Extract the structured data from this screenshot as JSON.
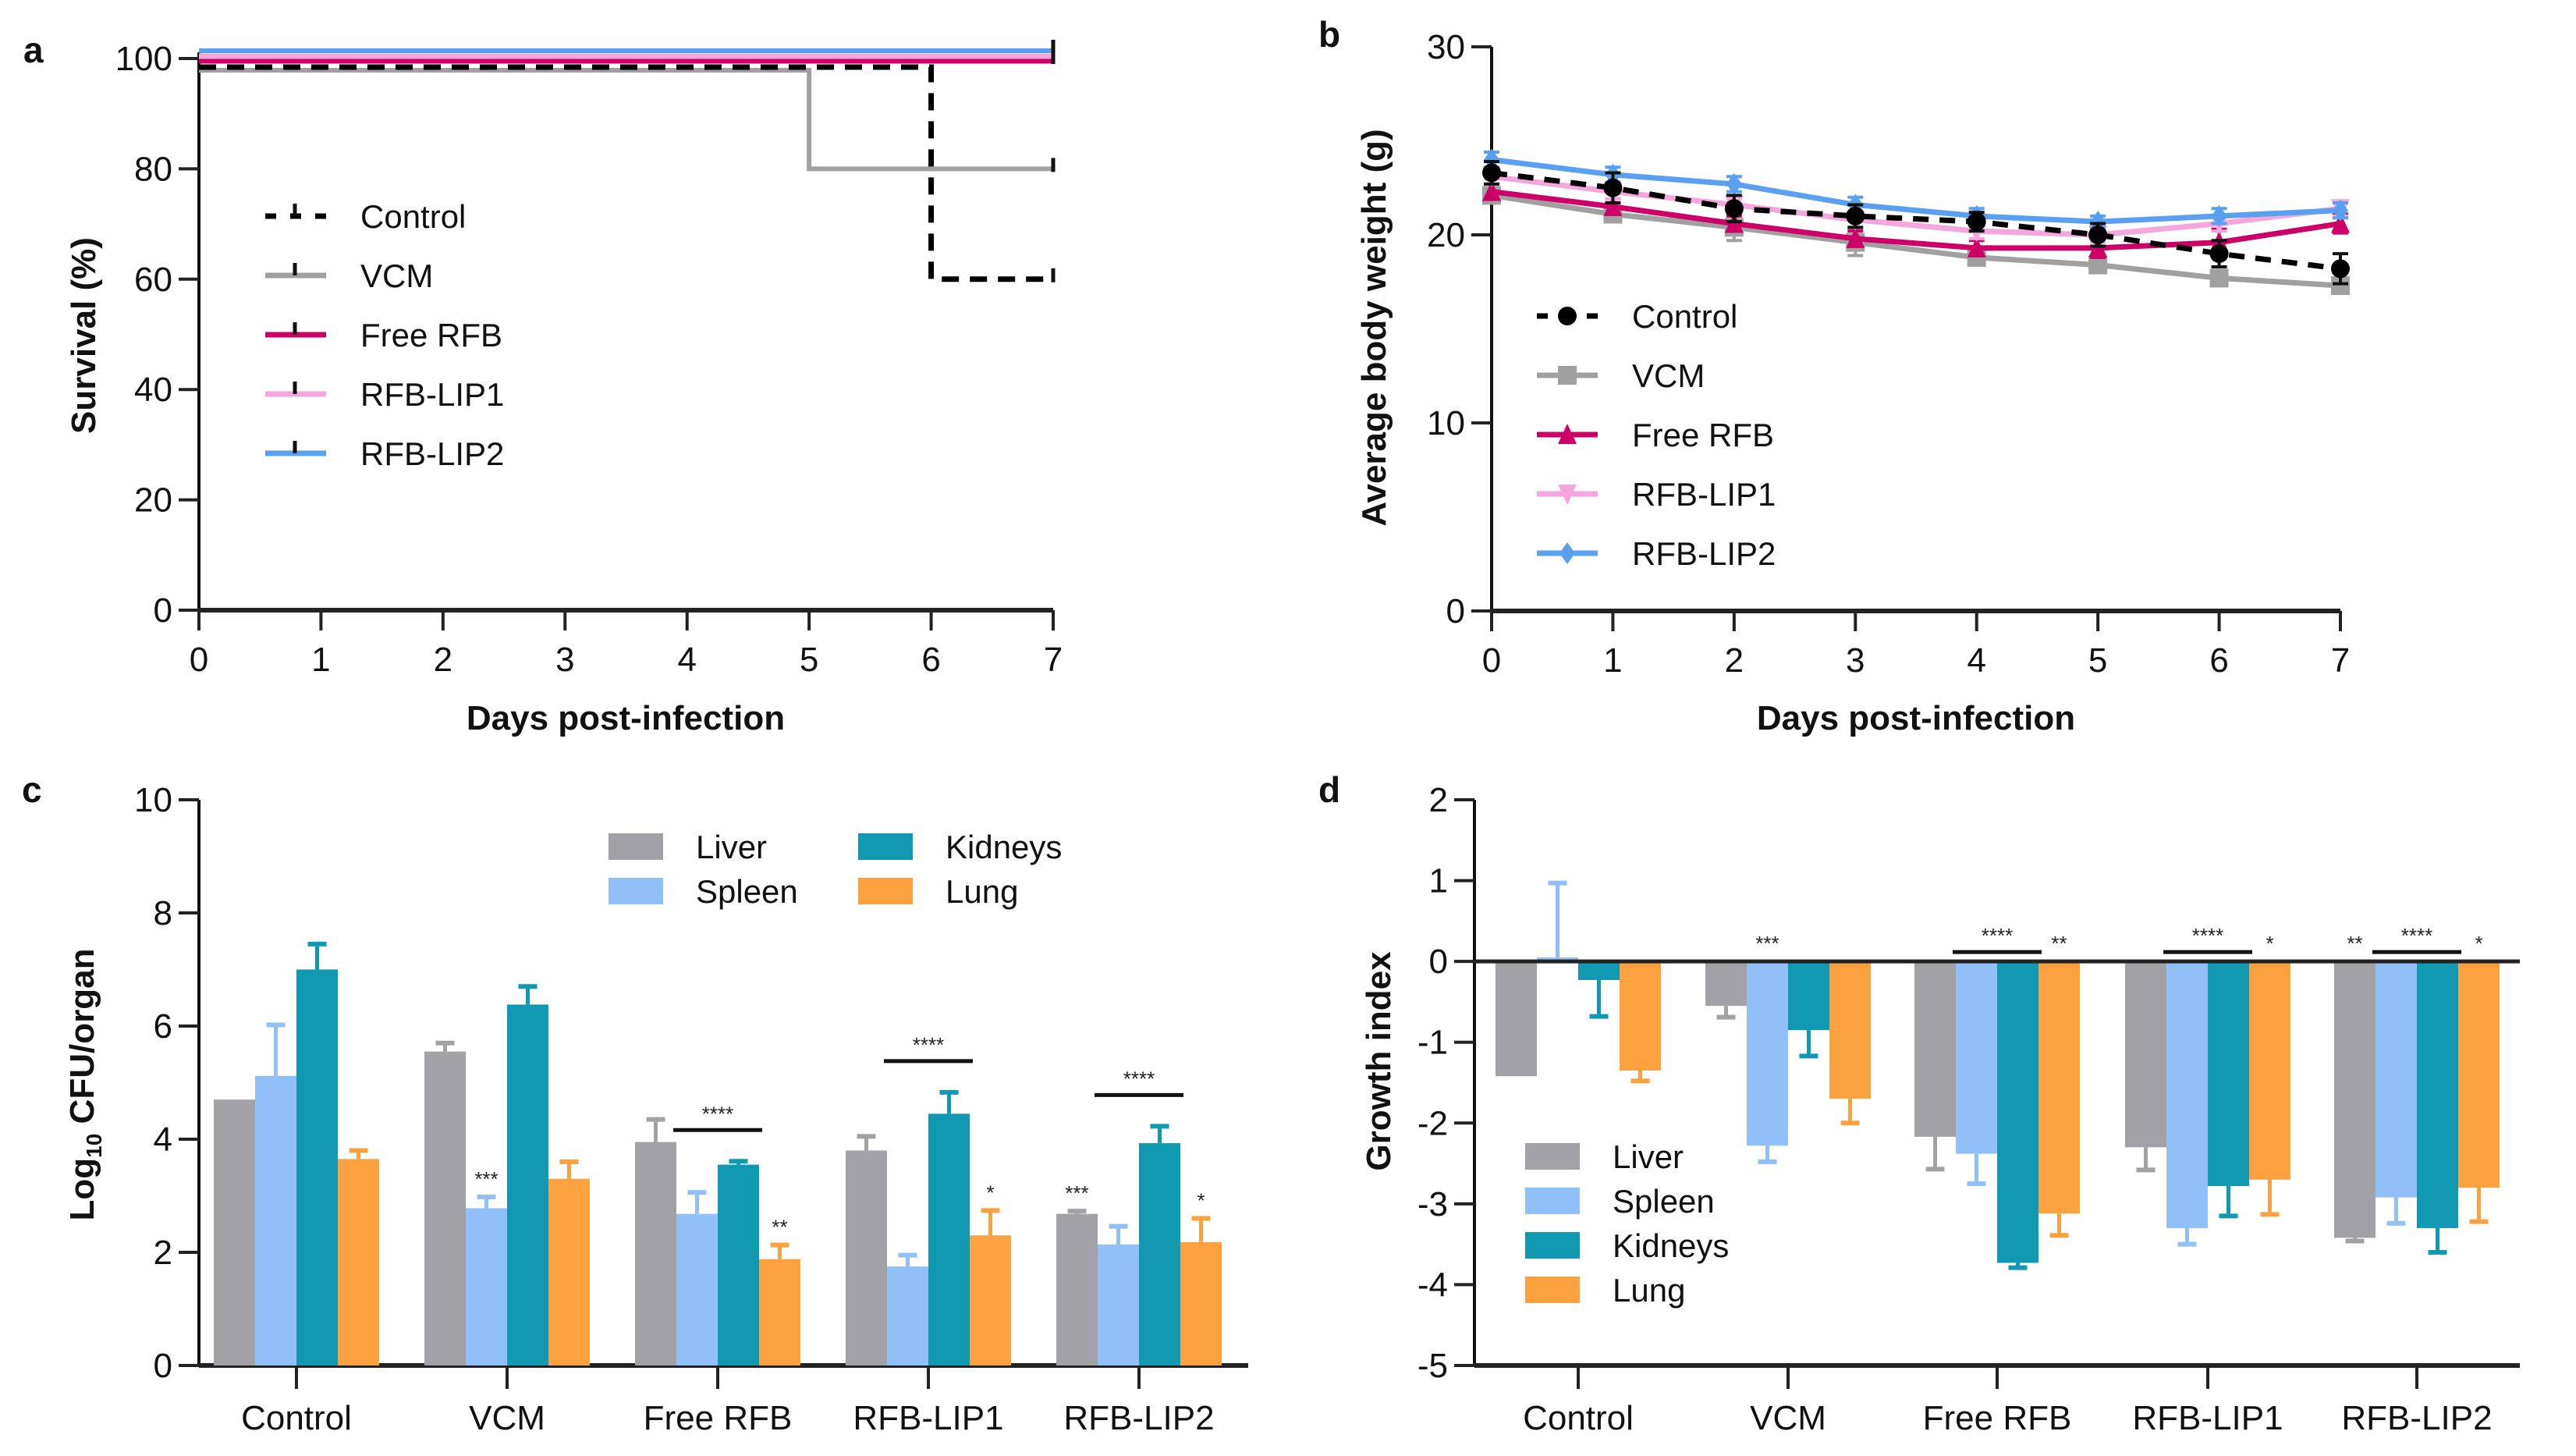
{
  "chart_data": [
    {
      "panel": "a",
      "type": "line",
      "subtype": "survival-step",
      "xlabel": "Days post-infection",
      "ylabel": "Survival (%)",
      "xlim": [
        0,
        7
      ],
      "ylim": [
        0,
        100
      ],
      "xticks": [
        "0",
        "1",
        "2",
        "3",
        "4",
        "5",
        "6",
        "7"
      ],
      "yticks": [
        "0",
        "20",
        "40",
        "60",
        "80",
        "100"
      ],
      "legend_position": "center-left",
      "series": [
        {
          "name": "Control",
          "color": "#000000",
          "style": "dashed",
          "x": [
            0,
            6,
            6,
            7
          ],
          "y": [
            100,
            100,
            60,
            60
          ]
        },
        {
          "name": "VCM",
          "color": "#a0a0a0",
          "style": "solid",
          "x": [
            0,
            5,
            5,
            7
          ],
          "y": [
            100,
            100,
            80,
            80
          ]
        },
        {
          "name": "Free RFB",
          "color": "#cc0066",
          "style": "solid",
          "x": [
            0,
            7
          ],
          "y": [
            100,
            100
          ]
        },
        {
          "name": "RFB-LIP1",
          "color": "#f4a6dd",
          "style": "solid",
          "x": [
            0,
            7
          ],
          "y": [
            100,
            100
          ]
        },
        {
          "name": "RFB-LIP2",
          "color": "#5aa0f0",
          "style": "solid",
          "x": [
            0,
            7
          ],
          "y": [
            100,
            100
          ]
        }
      ]
    },
    {
      "panel": "b",
      "type": "line",
      "xlabel": "Days post-infection",
      "ylabel": "Average body weight (g)",
      "xlim": [
        0,
        7
      ],
      "ylim": [
        0,
        30
      ],
      "xticks": [
        "0",
        "1",
        "2",
        "3",
        "4",
        "5",
        "6",
        "7"
      ],
      "yticks": [
        "0",
        "10",
        "20",
        "30"
      ],
      "legend_position": "center-left",
      "x": [
        0,
        1,
        2,
        3,
        4,
        5,
        6,
        7
      ],
      "series": [
        {
          "name": "Control",
          "color": "#000000",
          "style": "dashed",
          "marker": "circle",
          "values": [
            23.3,
            22.5,
            21.4,
            21.0,
            20.7,
            20.0,
            19.0,
            18.2
          ],
          "errors": [
            0.6,
            0.8,
            0.7,
            0.6,
            0.5,
            0.6,
            0.7,
            0.8
          ]
        },
        {
          "name": "VCM",
          "color": "#a0a0a0",
          "style": "solid",
          "marker": "square",
          "values": [
            22.1,
            21.1,
            20.4,
            19.6,
            18.8,
            18.4,
            17.7,
            17.3
          ],
          "errors": [
            0.4,
            0.4,
            0.7,
            0.7,
            0.3,
            0.3,
            0.3,
            0.4
          ]
        },
        {
          "name": "Free RFB",
          "color": "#cc0066",
          "style": "solid",
          "marker": "triangle-up",
          "values": [
            22.3,
            21.5,
            20.6,
            19.8,
            19.3,
            19.3,
            19.6,
            20.6
          ],
          "errors": [
            0.4,
            0.4,
            0.4,
            0.4,
            0.4,
            0.5,
            0.7,
            0.5
          ]
        },
        {
          "name": "RFB-LIP1",
          "color": "#f4a6dd",
          "style": "solid",
          "marker": "triangle-down",
          "values": [
            23.1,
            22.3,
            21.6,
            20.8,
            20.2,
            20.0,
            20.6,
            21.4
          ],
          "errors": [
            0.4,
            0.4,
            0.4,
            0.4,
            0.4,
            0.4,
            0.4,
            0.4
          ]
        },
        {
          "name": "RFB-LIP2",
          "color": "#5aa0f0",
          "style": "solid",
          "marker": "diamond",
          "values": [
            24.0,
            23.2,
            22.7,
            21.6,
            21.0,
            20.7,
            21.0,
            21.3
          ],
          "errors": [
            0.4,
            0.4,
            0.4,
            0.4,
            0.4,
            0.3,
            0.4,
            0.4
          ]
        }
      ]
    },
    {
      "panel": "c",
      "type": "bar",
      "xlabel": "",
      "ylabel": "Log10 CFU/organ",
      "ylim": [
        0,
        10
      ],
      "yticks": [
        "0",
        "2",
        "4",
        "6",
        "8",
        "10"
      ],
      "legend_position": "top-right",
      "categories": [
        "Control",
        "VCM",
        "Free RFB",
        "RFB-LIP1",
        "RFB-LIP2"
      ],
      "series": [
        {
          "name": "Liver",
          "color": "#a2a2a6",
          "values": [
            4.7,
            5.55,
            3.95,
            3.8,
            2.68
          ],
          "errors": [
            0,
            0.15,
            0.4,
            0.25,
            0.05
          ],
          "significance": [
            "",
            "",
            "",
            "",
            "***"
          ]
        },
        {
          "name": "Spleen",
          "color": "#91bff7",
          "values": [
            5.12,
            2.78,
            2.68,
            1.75,
            2.14
          ],
          "errors": [
            0.9,
            0.2,
            0.38,
            0.2,
            0.32
          ],
          "significance": [
            "",
            "***",
            "",
            "",
            ""
          ]
        },
        {
          "name": "Kidneys",
          "color": "#1199b2",
          "values": [
            7.0,
            6.38,
            3.55,
            4.45,
            3.93
          ],
          "errors": [
            0.45,
            0.32,
            0.06,
            0.38,
            0.3
          ],
          "significance": [
            "",
            "",
            "",
            "",
            ""
          ]
        },
        {
          "name": "Lung",
          "color": "#fba13f",
          "values": [
            3.65,
            3.3,
            1.88,
            2.3,
            2.18
          ],
          "errors": [
            0.15,
            0.3,
            0.25,
            0.44,
            0.42
          ],
          "significance": [
            "",
            "",
            "**",
            "*",
            "*"
          ]
        }
      ],
      "brackets": [
        {
          "category": "Free RFB",
          "label": "****"
        },
        {
          "category": "RFB-LIP1",
          "label": "****"
        },
        {
          "category": "RFB-LIP2",
          "label": "****"
        }
      ]
    },
    {
      "panel": "d",
      "type": "bar",
      "xlabel": "",
      "ylabel": "Growth index",
      "ylim": [
        -5,
        2
      ],
      "yticks": [
        "-5",
        "-4",
        "-3",
        "-2",
        "-1",
        "0",
        "1",
        "2"
      ],
      "legend_position": "bottom-left",
      "categories": [
        "Control",
        "VCM",
        "Free RFB",
        "RFB-LIP1",
        "RFB-LIP2"
      ],
      "series": [
        {
          "name": "Liver",
          "color": "#a2a2a6",
          "values": [
            -1.42,
            -0.55,
            -2.17,
            -2.3,
            -3.42
          ],
          "errors": [
            0,
            0.14,
            0.4,
            0.28,
            0.04
          ],
          "significance": [
            "",
            "",
            "",
            "",
            "**"
          ]
        },
        {
          "name": "Spleen",
          "color": "#91bff7",
          "values": [
            0.05,
            -2.28,
            -2.38,
            -3.3,
            -2.92
          ],
          "errors": [
            0.92,
            0.2,
            0.37,
            0.2,
            0.32
          ],
          "significance": [
            "",
            "***",
            "",
            "",
            ""
          ]
        },
        {
          "name": "Kidneys",
          "color": "#1199b2",
          "values": [
            -0.23,
            -0.85,
            -3.73,
            -2.78,
            -3.3
          ],
          "errors": [
            0.45,
            0.32,
            0.06,
            0.37,
            0.3
          ],
          "significance": [
            "",
            "",
            "",
            "",
            ""
          ]
        },
        {
          "name": "Lung",
          "color": "#fba13f",
          "values": [
            -1.35,
            -1.7,
            -3.12,
            -2.7,
            -2.8
          ],
          "errors": [
            0.13,
            0.3,
            0.27,
            0.43,
            0.42
          ],
          "significance": [
            "",
            "",
            "**",
            "*",
            "*"
          ]
        }
      ],
      "brackets": [
        {
          "category": "Free RFB",
          "label": "****"
        },
        {
          "category": "RFB-LIP1",
          "label": "****"
        },
        {
          "category": "RFB-LIP2",
          "label": "****"
        }
      ]
    }
  ],
  "panel_labels": [
    "a",
    "b",
    "c",
    "d"
  ]
}
